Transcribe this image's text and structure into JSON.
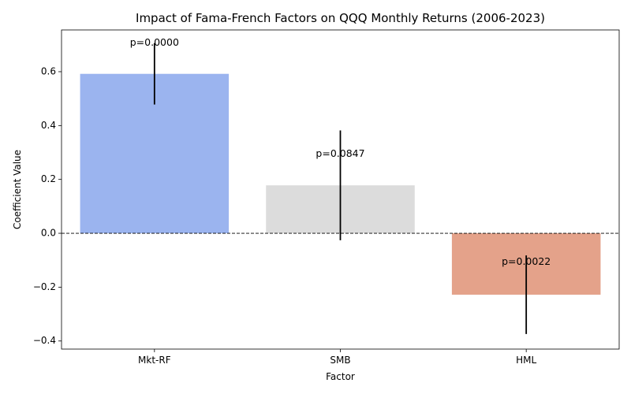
{
  "chart_data": {
    "type": "bar",
    "title": "Impact of Fama-French Factors on QQQ Monthly Returns (2006-2023)",
    "xlabel": "Factor",
    "ylabel": "Coefficient Value",
    "categories": [
      "Mkt-RF",
      "SMB",
      "HML"
    ],
    "values": [
      0.592,
      0.178,
      -0.228
    ],
    "error_bars": [
      {
        "low": 0.478,
        "high": 0.706
      },
      {
        "low": -0.026,
        "high": 0.382
      },
      {
        "low": -0.374,
        "high": -0.082
      }
    ],
    "annotations": [
      "p=0.0000",
      "p=0.0847",
      "p=0.0022"
    ],
    "annotation_y": [
      0.706,
      0.294,
      -0.106
    ],
    "bar_colors": [
      "#9bb4ef",
      "#dcdcdc",
      "#e4a28a"
    ],
    "ylim": [
      -0.43,
      0.755
    ],
    "yticks": [
      -0.4,
      -0.2,
      0.0,
      0.2,
      0.4,
      0.6
    ],
    "ytick_labels": [
      "−0.4",
      "−0.2",
      "0.0",
      "0.2",
      "0.4",
      "0.6"
    ],
    "zero_line": true,
    "grid": false
  }
}
